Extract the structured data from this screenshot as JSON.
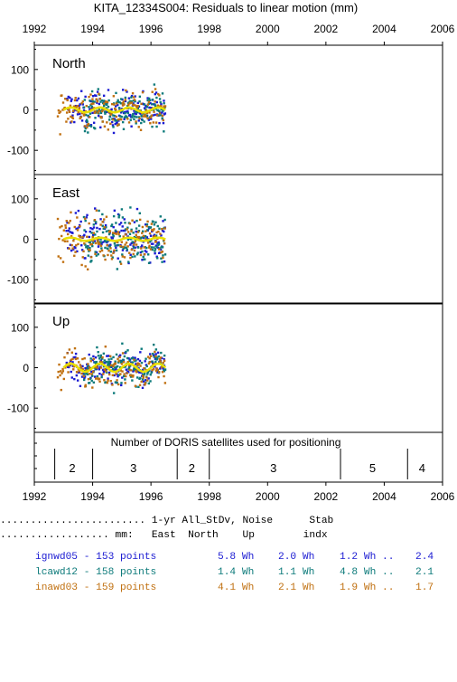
{
  "chart_data": {
    "type": "scatter",
    "title": "KITA_12334S004: Residuals to linear motion (mm)",
    "x_ticks": [
      "1992",
      "1994",
      "1996",
      "1998",
      "2000",
      "2002",
      "2004",
      "2006"
    ],
    "xlim": [
      1992,
      2006
    ],
    "panels": [
      {
        "label": "North",
        "ylim": [
          -160,
          160
        ],
        "yticks": [
          "100",
          "0",
          "-100"
        ],
        "spread": 22,
        "amp": 6
      },
      {
        "label": "East",
        "ylim": [
          -160,
          160
        ],
        "yticks": [
          "100",
          "0",
          "-100"
        ],
        "spread": 30,
        "amp": 4
      },
      {
        "label": "Up",
        "ylim": [
          -160,
          160
        ],
        "yticks": [
          "100",
          "0",
          "-100"
        ],
        "spread": 20,
        "amp": 10
      }
    ],
    "series": [
      {
        "name": "ignwd05",
        "color": "#1a1ad2",
        "start": 1993.1,
        "end": 1996.5,
        "count": 153
      },
      {
        "name": "lcawd12",
        "color": "#0c7a7a",
        "start": 1993.7,
        "end": 1996.5,
        "count": 158
      },
      {
        "name": "inawd03",
        "color": "#c07010",
        "start": 1992.8,
        "end": 1996.5,
        "count": 159
      }
    ],
    "trend_color": "#e8e000",
    "satellites": {
      "label": "Number of DORIS satellites used for positioning",
      "dividers": [
        1992.7,
        1994.0,
        1996.9,
        1998.0,
        2002.5,
        2004.8
      ],
      "segments": [
        {
          "count": "2",
          "x": 1993.3
        },
        {
          "count": "3",
          "x": 1995.4
        },
        {
          "count": "2",
          "x": 1997.4
        },
        {
          "count": "3",
          "x": 2000.2
        },
        {
          "count": "5",
          "x": 2003.6
        },
        {
          "count": "4",
          "x": 2005.3
        }
      ]
    }
  },
  "stats": {
    "header1": "........................ 1-yr All_StDv, Noise      Stab",
    "header2": ".................. mm:   East  North    Up        indx",
    "rows": [
      {
        "label": "ignwd05 - 153 points",
        "east": "5.8 Wh",
        "north": "2.0 Wh",
        "up": "1.2 Wh ..",
        "stab": "2.4",
        "color": "#1a1ad2"
      },
      {
        "label": "lcawd12 - 158 points",
        "east": "1.4 Wh",
        "north": "1.1 Wh",
        "up": "4.8 Wh ..",
        "stab": "2.1",
        "color": "#0c7a7a"
      },
      {
        "label": "inawd03 - 159 points",
        "east": "4.1 Wh",
        "north": "2.1 Wh",
        "up": "1.9 Wh ..",
        "stab": "1.7",
        "color": "#c07010"
      }
    ]
  }
}
